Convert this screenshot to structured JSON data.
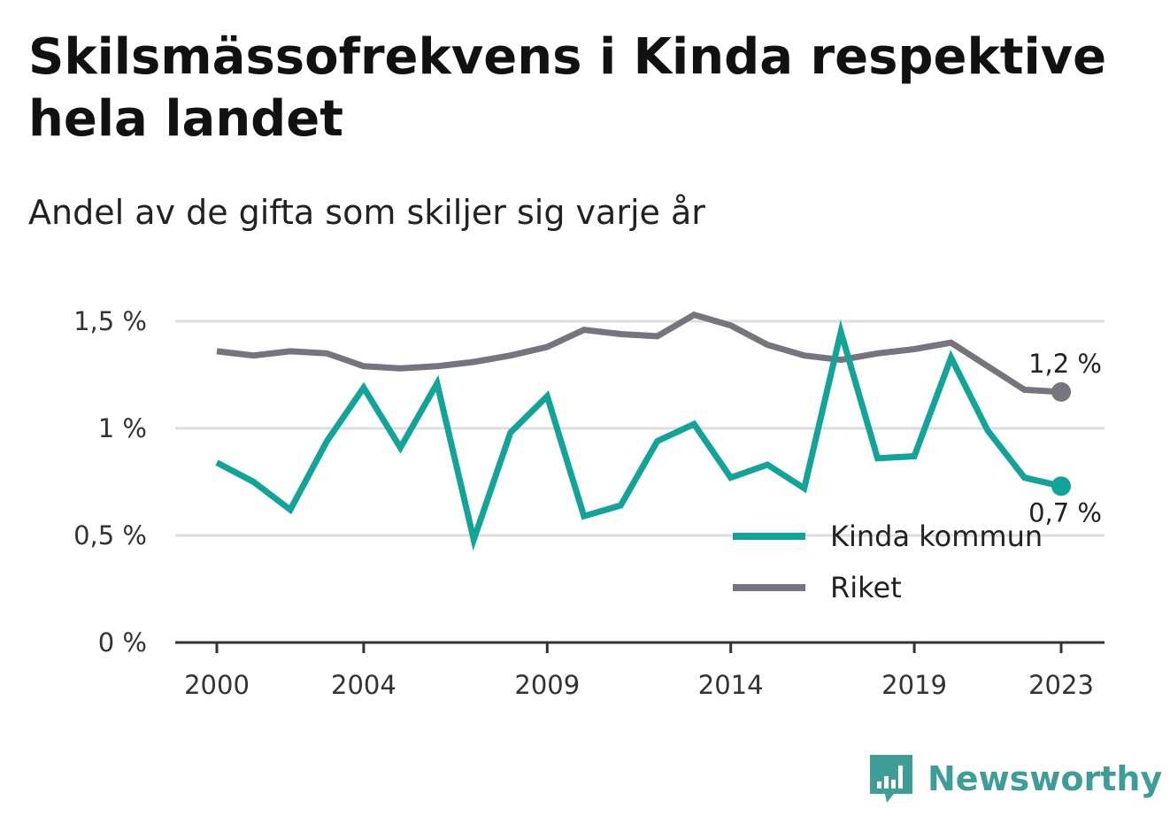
{
  "title": "Skilsmässofrekvens i Kinda respektive hela landet",
  "subtitle": "Andel av de gifta som skiljer sig varje år",
  "brand": {
    "name": "Newsworthy"
  },
  "colors": {
    "kinda": "#12a399",
    "riket": "#76757d",
    "grid": "#dddddd",
    "axis": "#333333",
    "brand": "#3f9d97"
  },
  "chart_data": {
    "type": "line",
    "title": "Skilsmässofrekvens i Kinda respektive hela landet",
    "subtitle": "Andel av de gifta som skiljer sig varje år",
    "x": [
      2000,
      2001,
      2002,
      2003,
      2004,
      2005,
      2006,
      2007,
      2008,
      2009,
      2010,
      2011,
      2012,
      2013,
      2014,
      2015,
      2016,
      2017,
      2018,
      2019,
      2020,
      2021,
      2022,
      2023
    ],
    "x_ticks": [
      2000,
      2004,
      2009,
      2014,
      2019,
      2023
    ],
    "x_tick_labels": [
      "2000",
      "2004",
      "2009",
      "2014",
      "2019",
      "2023"
    ],
    "y_ticks": [
      0,
      0.5,
      1,
      1.5
    ],
    "y_tick_labels": [
      "0 %",
      "0,5 %",
      "1 %",
      "1,5 %"
    ],
    "ylim": [
      0,
      1.5
    ],
    "grid": true,
    "legend_position": "bottom-right",
    "series": [
      {
        "name": "Kinda kommun",
        "color": "#12a399",
        "values": [
          0.84,
          0.75,
          0.62,
          0.94,
          1.19,
          0.91,
          1.21,
          0.48,
          0.98,
          1.15,
          0.59,
          0.64,
          0.94,
          1.02,
          0.77,
          0.83,
          0.72,
          1.45,
          0.86,
          0.87,
          1.33,
          0.99,
          0.77,
          0.73
        ],
        "end_label": "0,7 %"
      },
      {
        "name": "Riket",
        "color": "#76757d",
        "values": [
          1.36,
          1.34,
          1.36,
          1.35,
          1.29,
          1.28,
          1.29,
          1.31,
          1.34,
          1.38,
          1.46,
          1.44,
          1.43,
          1.53,
          1.48,
          1.39,
          1.34,
          1.32,
          1.35,
          1.37,
          1.4,
          1.29,
          1.18,
          1.17
        ],
        "end_label": "1,2 %"
      }
    ]
  }
}
